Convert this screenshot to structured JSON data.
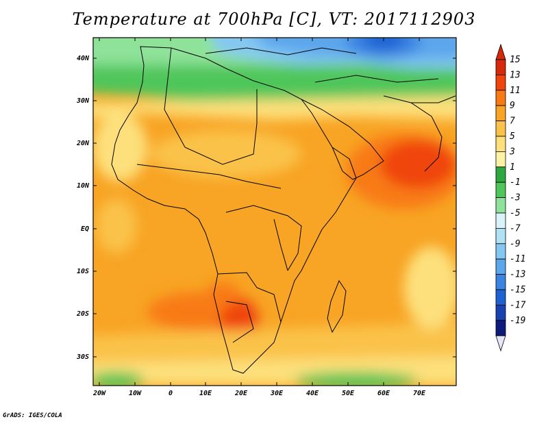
{
  "title": "Temperature at 700hPa [C], VT: 2017112903",
  "credit": "GrADS: IGES/COLA",
  "lat_labels": [
    "40N",
    "30N",
    "20N",
    "10N",
    "EQ",
    "10S",
    "20S",
    "30S"
  ],
  "lon_labels": [
    "20W",
    "10W",
    "0",
    "10E",
    "20E",
    "30E",
    "40E",
    "50E",
    "60E",
    "70E"
  ],
  "colorbar": {
    "levels": [
      "15",
      "13",
      "11",
      "9",
      "7",
      "5",
      "3",
      "1",
      "-1",
      "-3",
      "-5",
      "-7",
      "-9",
      "-11",
      "-13",
      "-15",
      "-17",
      "-19"
    ],
    "colors": [
      "#d42a0a",
      "#f0440c",
      "#f87a14",
      "#f8a424",
      "#fac24a",
      "#fde07c",
      "#fcf2a6",
      "#2ea83e",
      "#4fc65a",
      "#8fe29a",
      "#d8f4f8",
      "#b0e2f6",
      "#84c8f2",
      "#5ca6ec",
      "#3a84e2",
      "#1e62d2",
      "#1842b0",
      "#0c1c78"
    ],
    "top_arrow_color": "#d42a0a",
    "bottom_arrow_color": "#e6e6fa"
  }
}
